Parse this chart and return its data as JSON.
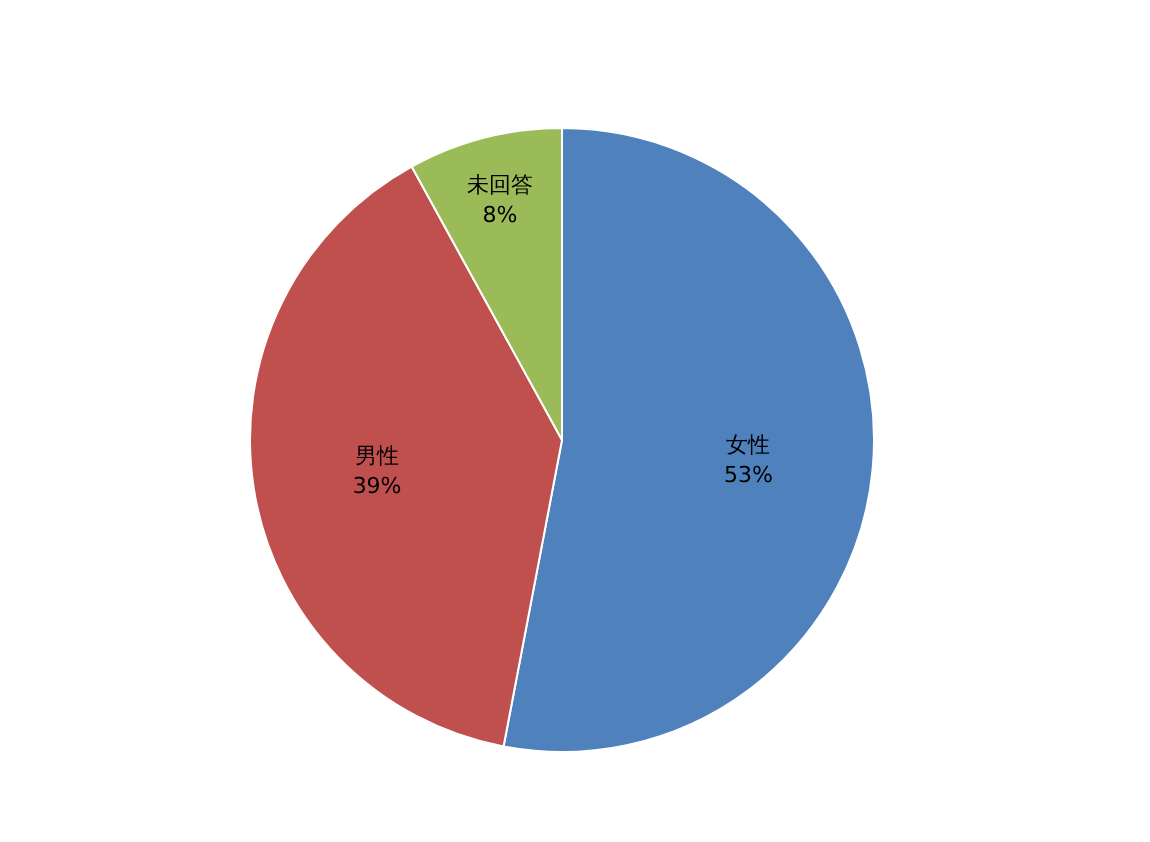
{
  "chart_data": {
    "type": "pie",
    "categories": [
      "女性",
      "男性",
      "未回答"
    ],
    "values": [
      53,
      39,
      8
    ],
    "colors": [
      "#4f81bd",
      "#c0504d",
      "#9bbb59"
    ],
    "value_labels": [
      "53%",
      "39%",
      "8%"
    ]
  }
}
